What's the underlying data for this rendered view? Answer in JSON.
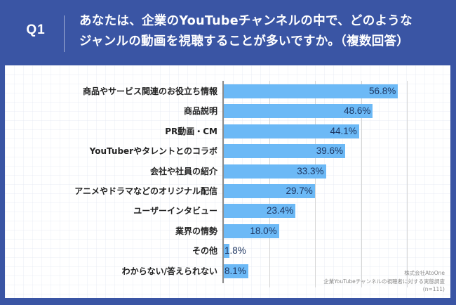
{
  "header": {
    "question_number": "Q1",
    "question_line1": "あなたは、企業のYouTubeチャンネルの中で、どのような",
    "question_line2": "ジャンルの動画を視聴することが多いですか。（複数回答）"
  },
  "colors": {
    "background_blue": "#3a55a4",
    "bar": "#6cb9f6",
    "value_text": "#1d3560",
    "label_text": "#222222",
    "panel": "#ffffff"
  },
  "chart_data": {
    "type": "bar",
    "orientation": "horizontal",
    "title": "あなたは、企業のYouTubeチャンネルの中で、どのようなジャンルの動画を視聴することが多いですか。（複数回答）",
    "categories": [
      "商品やサービス関連のお役立ち情報",
      "商品説明",
      "PR動画・CM",
      "YouTuberやタレントとのコラボ",
      "会社や社員の紹介",
      "アニメやドラマなどのオリジナル配信",
      "ユーザーインタビュー",
      "業界の情勢",
      "その他",
      "わからない/答えられない"
    ],
    "values": [
      56.8,
      48.6,
      44.1,
      39.6,
      33.3,
      29.7,
      23.4,
      18.0,
      1.8,
      8.1
    ],
    "value_labels": [
      "56.8%",
      "48.6%",
      "44.1%",
      "39.6%",
      "33.3%",
      "29.7%",
      "23.4%",
      "18.0%",
      "1.8%",
      "8.1%"
    ],
    "unit": "%",
    "xlabel": "",
    "ylabel": "",
    "xlim": [
      0,
      60
    ],
    "gridlines": [
      0,
      15,
      30,
      45,
      60
    ],
    "grid": true,
    "legend": null
  },
  "source": {
    "line1": "株式会社AtoOne",
    "line2": "企業YouTubeチャンネルの視聴者に対する実態調査",
    "line3": "(n=111)"
  }
}
